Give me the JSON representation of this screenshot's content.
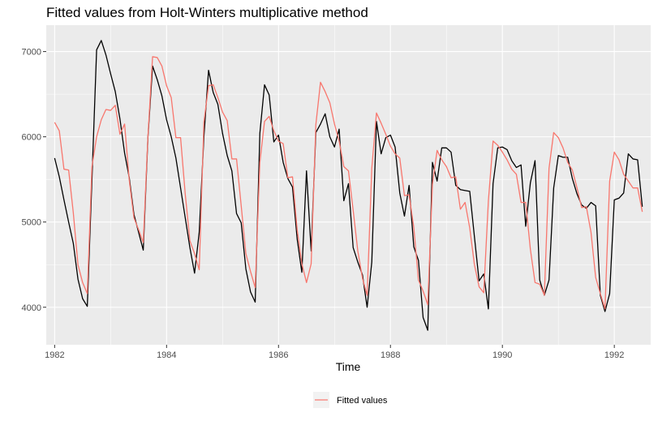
{
  "chart_data": {
    "type": "line",
    "title": "Fitted values from Holt-Winters multiplicative method",
    "xlabel": "Time",
    "ylabel": "",
    "xlim": [
      1981.85,
      1992.65
    ],
    "ylim": [
      3560,
      7310
    ],
    "x_ticks": [
      1982,
      1984,
      1986,
      1988,
      1990,
      1992
    ],
    "y_ticks": [
      4000,
      5000,
      6000,
      7000
    ],
    "grid": true,
    "legend": {
      "position": "bottom",
      "entries": [
        "Fitted values"
      ]
    },
    "x_start": 1982,
    "step": 0.0833333,
    "series": [
      {
        "role": "observed",
        "color": "#000000",
        "values": [
          5750,
          5530,
          5260,
          5000,
          4750,
          4330,
          4100,
          4010,
          5500,
          7020,
          7130,
          6960,
          6740,
          6530,
          6210,
          5810,
          5520,
          5090,
          4880,
          4670,
          5990,
          6830,
          6670,
          6480,
          6200,
          6000,
          5750,
          5400,
          5050,
          4700,
          4400,
          4880,
          6000,
          6780,
          6520,
          6380,
          6040,
          5780,
          5600,
          5100,
          4990,
          4450,
          4180,
          4060,
          6040,
          6610,
          6490,
          5940,
          6020,
          5700,
          5510,
          5410,
          4800,
          4410,
          5600,
          4660,
          6050,
          6150,
          6270,
          6000,
          5880,
          6090,
          5250,
          5450,
          4700,
          4530,
          4380,
          4000,
          4530,
          6180,
          5800,
          5990,
          6020,
          5880,
          5340,
          5070,
          5430,
          4710,
          4550,
          3880,
          3730,
          5700,
          5480,
          5870,
          5870,
          5820,
          5430,
          5380,
          5370,
          5360,
          4830,
          4310,
          4390,
          3980,
          5450,
          5870,
          5880,
          5850,
          5720,
          5640,
          5670,
          4950,
          5460,
          5720,
          4320,
          4140,
          4320,
          5400,
          5780,
          5760,
          5760,
          5510,
          5330,
          5200,
          5160,
          5230,
          5190,
          4140,
          3950,
          4160,
          5260,
          5280,
          5340,
          5800,
          5740,
          5730,
          5180
        ]
      },
      {
        "name": "Fitted values",
        "color": "#F8766D",
        "values": [
          6170,
          6070,
          5620,
          5610,
          5110,
          4500,
          4290,
          4160,
          5650,
          6000,
          6200,
          6320,
          6310,
          6370,
          6030,
          6150,
          5490,
          5050,
          4910,
          4760,
          6000,
          6940,
          6930,
          6830,
          6600,
          6460,
          5990,
          5990,
          5330,
          4780,
          4630,
          4440,
          6170,
          6600,
          6610,
          6460,
          6290,
          6190,
          5740,
          5740,
          5190,
          4630,
          4420,
          4230,
          5700,
          6180,
          6240,
          6070,
          5950,
          5920,
          5520,
          5530,
          4910,
          4510,
          4290,
          4510,
          6140,
          6640,
          6530,
          6400,
          6150,
          5950,
          5650,
          5600,
          5140,
          4660,
          4340,
          4140,
          5630,
          6280,
          6160,
          6030,
          5890,
          5800,
          5750,
          5310,
          5320,
          4940,
          4320,
          4190,
          4030,
          5440,
          5840,
          5730,
          5650,
          5520,
          5530,
          5150,
          5230,
          4930,
          4500,
          4240,
          4170,
          5250,
          5950,
          5900,
          5820,
          5730,
          5620,
          5560,
          5230,
          5230,
          4680,
          4290,
          4270,
          4140,
          5630,
          6050,
          5990,
          5870,
          5700,
          5610,
          5400,
          5170,
          5180,
          4880,
          4350,
          4160,
          3980,
          5480,
          5820,
          5730,
          5560,
          5480,
          5400,
          5400,
          5120
        ]
      }
    ]
  }
}
